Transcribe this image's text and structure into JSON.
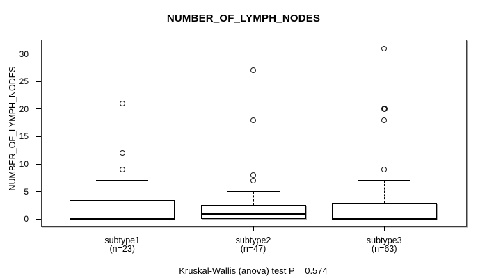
{
  "figure": {
    "title": "NUMBER_OF_LYMPH_NODES",
    "y_axis_label": "NUMBER_OF_LYMPH_NODES",
    "caption": "Kruskal-Wallis (anova) test P = 0.574"
  },
  "chart_data": {
    "type": "boxplot",
    "title": "NUMBER_OF_LYMPH_NODES",
    "xlabel": "",
    "ylabel": "NUMBER_OF_LYMPH_NODES",
    "ylim": [
      -1.1,
      32.6
    ],
    "yticks": [
      0,
      5,
      10,
      15,
      20,
      25,
      30
    ],
    "grid": false,
    "legend": "none",
    "caption": "Kruskal-Wallis (anova) test P = 0.574",
    "statistical_test": {
      "name": "Kruskal-Wallis (anova) test",
      "p_value": 0.574
    },
    "groups": [
      {
        "label": "subtype1",
        "sublabel": "(n=23)",
        "n": 23,
        "whisker_low": 0,
        "q1": 0,
        "median": 0,
        "q3": 3.5,
        "whisker_high": 7,
        "outliers": [
          9,
          12,
          21
        ]
      },
      {
        "label": "subtype2",
        "sublabel": "(n=47)",
        "n": 47,
        "whisker_low": 0,
        "q1": 0,
        "median": 1,
        "q3": 2.5,
        "whisker_high": 5,
        "outliers": [
          7,
          8,
          18,
          27
        ]
      },
      {
        "label": "subtype3",
        "sublabel": "(n=63)",
        "n": 63,
        "whisker_low": 0,
        "q1": 0,
        "median": 0,
        "q3": 3,
        "whisker_high": 7,
        "outliers": [
          9,
          18,
          20,
          20,
          31
        ]
      }
    ],
    "colors": {
      "box_fill": "#ffffff",
      "stroke": "#000000",
      "shadow": "#a0a0a0"
    }
  }
}
